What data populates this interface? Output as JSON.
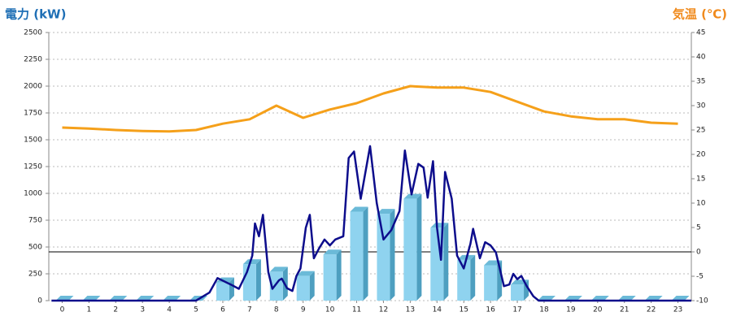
{
  "chart_data": {
    "type": "bar",
    "title_left": "電力 (kW)",
    "title_right": "気温 (℃)",
    "xlim": [
      -0.5,
      23.5
    ],
    "xticks": [
      0,
      1,
      2,
      3,
      4,
      5,
      6,
      7,
      8,
      9,
      10,
      11,
      12,
      13,
      14,
      15,
      16,
      17,
      18,
      19,
      20,
      21,
      22,
      23
    ],
    "ylim": [
      0,
      2500
    ],
    "yticks": [
      0,
      250,
      500,
      750,
      1000,
      1250,
      1500,
      1750,
      2000,
      2250,
      2500
    ],
    "y2lim": [
      -10,
      45
    ],
    "y2ticks": [
      -10,
      -5,
      0,
      5,
      10,
      15,
      20,
      25,
      30,
      35,
      40,
      45
    ],
    "grid": true,
    "series": [
      {
        "type": "bar",
        "color": "#8fd3ef",
        "x": [
          0,
          1,
          2,
          3,
          4,
          5,
          6,
          7,
          8,
          9,
          10,
          11,
          12,
          13,
          14,
          15,
          16,
          17,
          18,
          19,
          20,
          21,
          22,
          23
        ],
        "values": [
          0,
          0,
          0,
          0,
          0,
          0,
          170,
          340,
          270,
          230,
          430,
          830,
          810,
          950,
          680,
          380,
          330,
          150,
          0,
          0,
          0,
          0,
          0,
          0
        ]
      },
      {
        "type": "line",
        "color": "#0d0d8c",
        "x": [
          -0.4,
          5,
          5.5,
          5.8,
          6.3,
          6.6,
          6.9,
          7.1,
          7.2,
          7.35,
          7.5,
          7.7,
          7.85,
          8.1,
          8.2,
          8.4,
          8.6,
          8.75,
          8.9,
          9.1,
          9.25,
          9.4,
          9.6,
          9.8,
          10,
          10.2,
          10.5,
          10.7,
          10.9,
          11.15,
          11.5,
          11.75,
          12,
          12.3,
          12.6,
          12.8,
          13.05,
          13.3,
          13.5,
          13.65,
          13.85,
          14,
          14.15,
          14.3,
          14.55,
          14.75,
          15,
          15.25,
          15.35,
          15.6,
          15.8,
          16,
          16.2,
          16.5,
          16.7,
          16.85,
          17,
          17.15,
          17.35,
          17.6,
          17.8,
          23.5
        ],
        "values": [
          0,
          0,
          75,
          210,
          150,
          110,
          265,
          420,
          720,
          600,
          800,
          265,
          110,
          190,
          205,
          115,
          90,
          230,
          300,
          680,
          800,
          395,
          490,
          570,
          515,
          570,
          600,
          1330,
          1390,
          950,
          1440,
          910,
          570,
          660,
          835,
          1400,
          990,
          1275,
          1240,
          960,
          1300,
          680,
          380,
          1200,
          950,
          420,
          300,
          530,
          670,
          395,
          545,
          515,
          450,
          135,
          150,
          250,
          200,
          230,
          135,
          40,
          0,
          0
        ]
      },
      {
        "type": "line",
        "axis": "y2",
        "color": "#f5a01a",
        "x": [
          0,
          1,
          2,
          3,
          4,
          5,
          6,
          7,
          8,
          9,
          10,
          11,
          12,
          13,
          14,
          15,
          16,
          17,
          18,
          19,
          20,
          21,
          22,
          23
        ],
        "values": [
          25.5,
          25.3,
          25,
          24.8,
          24.7,
          25,
          26.3,
          27.2,
          30,
          27.5,
          29.2,
          30.5,
          32.5,
          34,
          33.7,
          33.7,
          32.8,
          30.8,
          28.8,
          27.8,
          27.2,
          27.2,
          26.5,
          26.3
        ]
      }
    ]
  }
}
